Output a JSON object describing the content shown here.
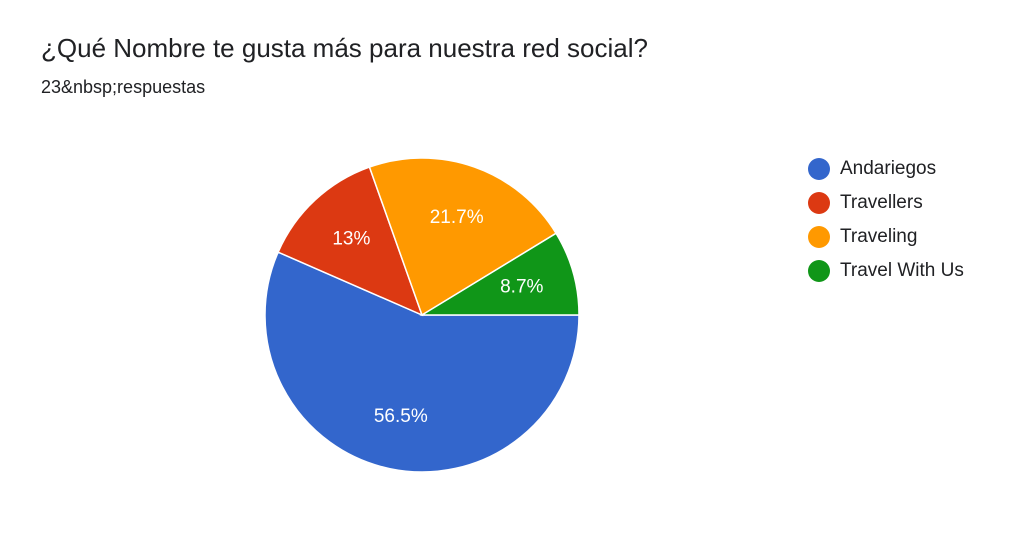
{
  "title": "¿Qué Nombre te gusta más para nuestra red social?",
  "subtitle": "23&nbsp;respuestas",
  "chart_data": {
    "type": "pie",
    "categories": [
      "Andariegos",
      "Travellers",
      "Traveling",
      "Travel With Us"
    ],
    "values": [
      56.5,
      13,
      21.7,
      8.7
    ],
    "labels": [
      "56.5%",
      "13%",
      "21.7%",
      "8.7%"
    ],
    "colors": [
      "#3366cc",
      "#dc3912",
      "#ff9900",
      "#109618"
    ],
    "legend_position": "right"
  }
}
